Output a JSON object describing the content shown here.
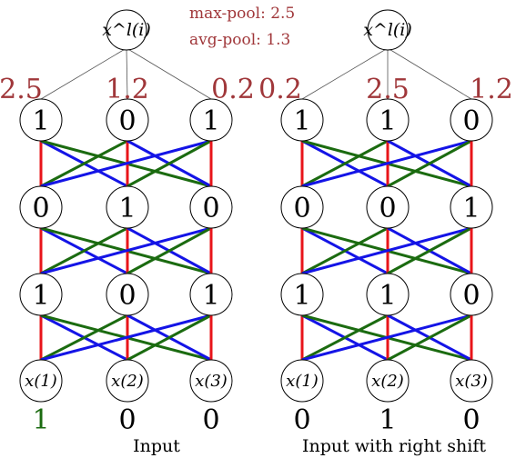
{
  "pool_labels": {
    "max": "max-pool: 2.5",
    "avg": "avg-pool: 1.3"
  },
  "colors": {
    "annotation": "#a0373a",
    "red_edge": "#e8141a",
    "green_edge": "#1b6b10",
    "blue_edge": "#1414e6",
    "highlight_input": "#1b6b10"
  },
  "networks": [
    {
      "top_label": "x^l(i)",
      "top_values": [
        "2.5",
        "1.2",
        "0.2"
      ],
      "layers": [
        [
          "1",
          "0",
          "1"
        ],
        [
          "0",
          "1",
          "0"
        ],
        [
          "1",
          "0",
          "1"
        ]
      ],
      "inputs": [
        "x(1)",
        "x(2)",
        "x(3)"
      ],
      "input_values": [
        "1",
        "0",
        "0"
      ],
      "caption": "Input"
    },
    {
      "top_label": "x^l(i)",
      "top_values": [
        "0.2",
        "2.5",
        "1.2"
      ],
      "layers": [
        [
          "1",
          "1",
          "0"
        ],
        [
          "0",
          "0",
          "1"
        ],
        [
          "1",
          "1",
          "0"
        ]
      ],
      "inputs": [
        "x(1)",
        "x(2)",
        "x(3)"
      ],
      "input_values": [
        "0",
        "1",
        "0"
      ],
      "caption": "Input with right shift"
    }
  ]
}
